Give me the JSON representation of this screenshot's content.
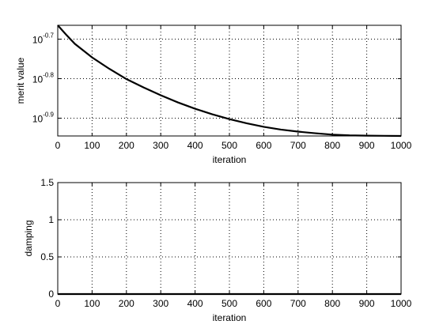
{
  "chart_data": [
    {
      "type": "line",
      "title": "",
      "xlabel": "iteration",
      "ylabel": "merit value",
      "xlim": [
        0,
        1000
      ],
      "ylim": [
        0.1135,
        0.2163
      ],
      "yscale": "log",
      "grid": true,
      "x_ticks": [
        0,
        100,
        200,
        300,
        400,
        500,
        600,
        700,
        800,
        900,
        1000
      ],
      "x_tick_labels": [
        "0",
        "100",
        "200",
        "300",
        "400",
        "500",
        "600",
        "700",
        "800",
        "900",
        "1000"
      ],
      "y_ticks": [
        0.1259,
        0.1585,
        0.1995
      ],
      "y_tick_labels": [
        {
          "base": "10",
          "exp": "-0.9"
        },
        {
          "base": "10",
          "exp": "-0.8"
        },
        {
          "base": "10",
          "exp": "-0.7"
        }
      ],
      "series": [
        {
          "x": [
            0,
            25,
            50,
            100,
            150,
            200,
            250,
            300,
            350,
            400,
            450,
            500,
            550,
            600,
            650,
            700,
            750,
            800,
            850,
            900,
            950,
            1000
          ],
          "values": [
            0.2163,
            0.2046,
            0.1941,
            0.1794,
            0.1679,
            0.1581,
            0.1506,
            0.1439,
            0.138,
            0.133,
            0.1288,
            0.1252,
            0.1222,
            0.1197,
            0.1178,
            0.1164,
            0.1153,
            0.1144,
            0.1139,
            0.1137,
            0.1136,
            0.1135
          ]
        }
      ]
    },
    {
      "type": "line",
      "title": "",
      "xlabel": "iteration",
      "ylabel": "damping",
      "xlim": [
        0,
        1000
      ],
      "ylim": [
        0,
        1.5
      ],
      "grid": true,
      "x_ticks": [
        0,
        100,
        200,
        300,
        400,
        500,
        600,
        700,
        800,
        900,
        1000
      ],
      "x_tick_labels": [
        "0",
        "100",
        "200",
        "300",
        "400",
        "500",
        "600",
        "700",
        "800",
        "900",
        "1000"
      ],
      "y_ticks": [
        0,
        0.5,
        1,
        1.5
      ],
      "y_tick_labels": [
        "0",
        "0.5",
        "1",
        "1.5"
      ],
      "series": [
        {
          "x": [
            0,
            1000
          ],
          "values": [
            0,
            0
          ]
        }
      ]
    }
  ]
}
